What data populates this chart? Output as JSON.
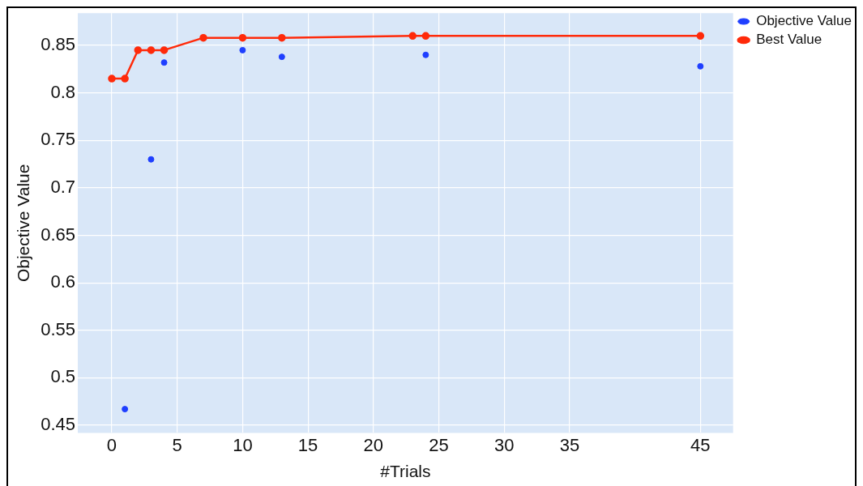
{
  "chart_data": {
    "type": "scatter",
    "xlabel": "#Trials",
    "ylabel": "Objective Value",
    "xlim": [
      -2.6,
      47.5
    ],
    "ylim": [
      0.442,
      0.884
    ],
    "xticks": [
      0,
      5,
      10,
      15,
      20,
      25,
      30,
      35,
      45
    ],
    "yticks": [
      0.45,
      0.5,
      0.55,
      0.6,
      0.65,
      0.7,
      0.75,
      0.8,
      0.85
    ],
    "grid": true,
    "legend": "top right",
    "marker": "circle",
    "series": [
      {
        "name": "Objective Value",
        "color": "#1f3fff",
        "x": [
          1,
          3,
          4,
          10,
          13,
          24,
          45
        ],
        "values": [
          0.467,
          0.73,
          0.832,
          0.845,
          0.838,
          0.84,
          0.828
        ]
      },
      {
        "name": "Best Value",
        "type": "line",
        "color": "#ff2a0a",
        "line_style": "solid",
        "x": [
          0,
          1,
          2,
          3,
          4,
          7,
          10,
          13,
          23,
          24,
          45
        ],
        "values": [
          0.815,
          0.815,
          0.845,
          0.845,
          0.845,
          0.858,
          0.858,
          0.858,
          0.86,
          0.86,
          0.86
        ]
      }
    ]
  }
}
